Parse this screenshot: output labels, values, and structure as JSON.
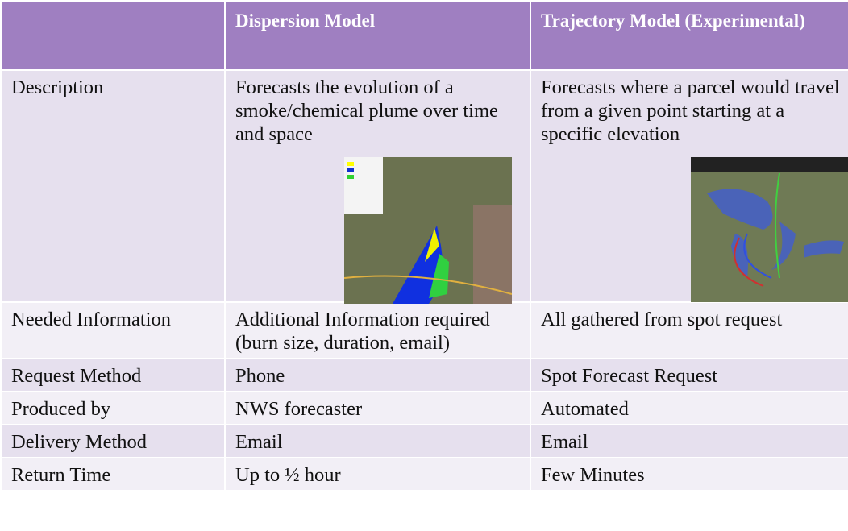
{
  "table": {
    "header": [
      "Dispersion Model",
      "Trajectory Model (Experimental)"
    ],
    "rows": [
      [
        "Description",
        "Forecasts the evolution of a smoke/chemical plume over time and space",
        "Forecasts where a parcel would travel from a given point starting at a specific elevation"
      ],
      [
        "Needed Information",
        "Additional Information required (burn size, duration, email)",
        "All gathered from spot request"
      ],
      [
        "Request Method",
        "Phone",
        "Spot Forecast Request"
      ],
      [
        "Produced by",
        "NWS forecaster",
        "Automated"
      ],
      [
        "Delivery Method",
        "Email",
        "Email"
      ],
      [
        "Return Time",
        "Up to ½ hour",
        "Few Minutes"
      ]
    ]
  }
}
